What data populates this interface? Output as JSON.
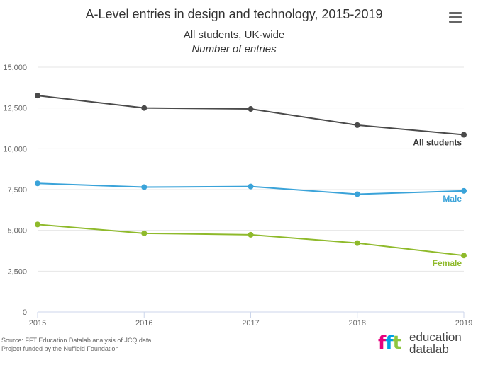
{
  "header": {
    "title": "A-Level entries in design and technology, 2015-2019",
    "subtitle": "All students, UK-wide",
    "subtitle_italic": "Number of entries"
  },
  "menu": {
    "icon": "hamburger-menu-icon"
  },
  "source": {
    "line1": "Source: FFT Education Datalab analysis of JCQ data",
    "line2": "Project funded by the Nuffield Foundation"
  },
  "logo": {
    "mark": "fft",
    "line1": "education",
    "line2": "datalab",
    "colors": [
      "#e6007e",
      "#00a0e3",
      "#8dc63f"
    ]
  },
  "chart_data": {
    "type": "line",
    "title": "A-Level entries in design and technology, 2015-2019",
    "subtitle": "All students, UK-wide",
    "ylabel": "Number of entries",
    "x": [
      2015,
      2016,
      2017,
      2018,
      2019
    ],
    "x_tick_labels": [
      "2015",
      "2016",
      "2017",
      "2018",
      "2019"
    ],
    "ylim": [
      0,
      15000
    ],
    "y_ticks": [
      0,
      2500,
      5000,
      7500,
      10000,
      12500,
      15000
    ],
    "y_tick_labels": [
      "0",
      "2,500",
      "5,000",
      "7,500",
      "10,000",
      "12,500",
      "15,000"
    ],
    "grid": true,
    "legend": "inline labels at line ends",
    "series": [
      {
        "name": "All students",
        "color": "#4a4a4a",
        "values": [
          13260,
          12500,
          12440,
          11450,
          10860
        ]
      },
      {
        "name": "Male",
        "color": "#3aa3d9",
        "values": [
          7880,
          7650,
          7690,
          7220,
          7420
        ]
      },
      {
        "name": "Female",
        "color": "#8fba2b",
        "values": [
          5360,
          4820,
          4730,
          4220,
          3460
        ]
      }
    ]
  }
}
